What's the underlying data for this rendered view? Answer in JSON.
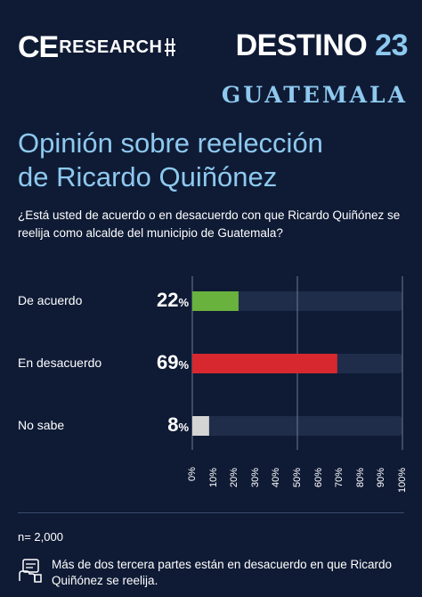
{
  "brand": {
    "ce": "CE",
    "research": "RESEARCH",
    "destino": "DESTINO",
    "destino_num": "23",
    "subbrand": "GUATEMALA"
  },
  "title_line1": "Opinión sobre reelección",
  "title_line2": "de Ricardo Quiñónez",
  "question": "¿Está usted de acuerdo o en desacuerdo con que Ricardo Quiñónez se reelija como alcalde del municipio de Guatemala?",
  "colors": {
    "background": "#0f1b35",
    "accent": "#8ec9ef",
    "track": "#1f2d4a",
    "acuerdo": "#6ab23e",
    "desacuerdo": "#d7282f",
    "no_sabe": "#d4d4d4"
  },
  "chart_data": {
    "type": "bar",
    "orientation": "horizontal",
    "categories": [
      "De acuerdo",
      "En desacuerdo",
      "No sabe"
    ],
    "values": [
      22,
      69,
      8
    ],
    "data_labels": [
      "22",
      "69",
      "8"
    ],
    "unit": "%",
    "xlim": [
      0,
      100
    ],
    "xticks": [
      "0%",
      "10%",
      "20%",
      "30%",
      "40%",
      "50%",
      "60%",
      "70%",
      "80%",
      "90%",
      "100%"
    ],
    "grid": "vertical lines at 50% and 100%"
  },
  "sample": "n= 2,000",
  "note": "Más de dos tercera partes están en desacuerdo en que Ricardo Quiñónez se reelija.",
  "icons": {
    "note": "survey-hand-icon"
  }
}
